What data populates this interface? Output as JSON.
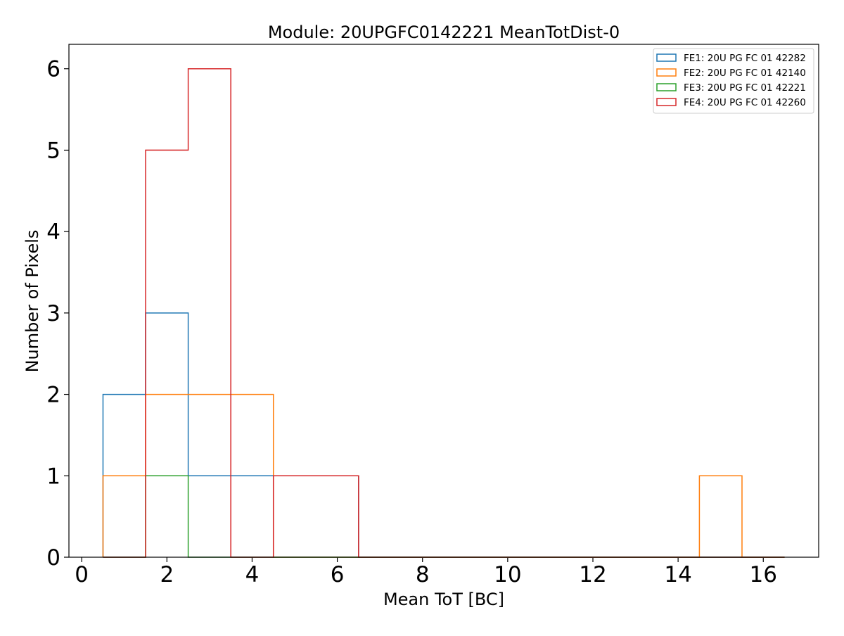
{
  "chart_data": {
    "type": "histogram",
    "title": "Module: 20UPGFC0142221 MeanTotDist-0",
    "xlabel": "Mean ToT [BC]",
    "ylabel": "Number of Pixels",
    "xlim": [
      -0.3,
      17.3
    ],
    "ylim": [
      0,
      6.3
    ],
    "xticks": [
      0,
      2,
      4,
      6,
      8,
      10,
      12,
      14,
      16
    ],
    "yticks": [
      0,
      1,
      2,
      3,
      4,
      5,
      6
    ],
    "bin_edges": [
      0.5,
      1.5,
      2.5,
      3.5,
      4.5,
      5.5,
      6.5,
      7.5,
      8.5,
      9.5,
      10.5,
      11.5,
      12.5,
      13.5,
      14.5,
      15.5,
      16.5
    ],
    "grid": false,
    "legend_position": "top-right",
    "series": [
      {
        "name": "FE1: 20U PG FC 01 42282",
        "color": "#1f77b4",
        "values": [
          2,
          3,
          1,
          1,
          1,
          1,
          0,
          0,
          0,
          0,
          0,
          0,
          0,
          0,
          0,
          0
        ]
      },
      {
        "name": "FE2: 20U PG FC 01 42140",
        "color": "#ff7f0e",
        "values": [
          1,
          2,
          2,
          2,
          0,
          0,
          0,
          0,
          0,
          0,
          0,
          0,
          0,
          0,
          1,
          0
        ]
      },
      {
        "name": "FE3: 20U PG FC 01 42221",
        "color": "#2ca02c",
        "values": [
          0,
          1,
          0,
          0,
          0,
          0,
          0,
          0,
          0,
          0,
          0,
          0,
          0,
          0,
          0,
          0
        ]
      },
      {
        "name": "FE4: 20U PG FC 01 42260",
        "color": "#d62728",
        "values": [
          0,
          5,
          6,
          0,
          1,
          1,
          0,
          0,
          0,
          0,
          0,
          0,
          0,
          0,
          0,
          0
        ]
      }
    ]
  }
}
